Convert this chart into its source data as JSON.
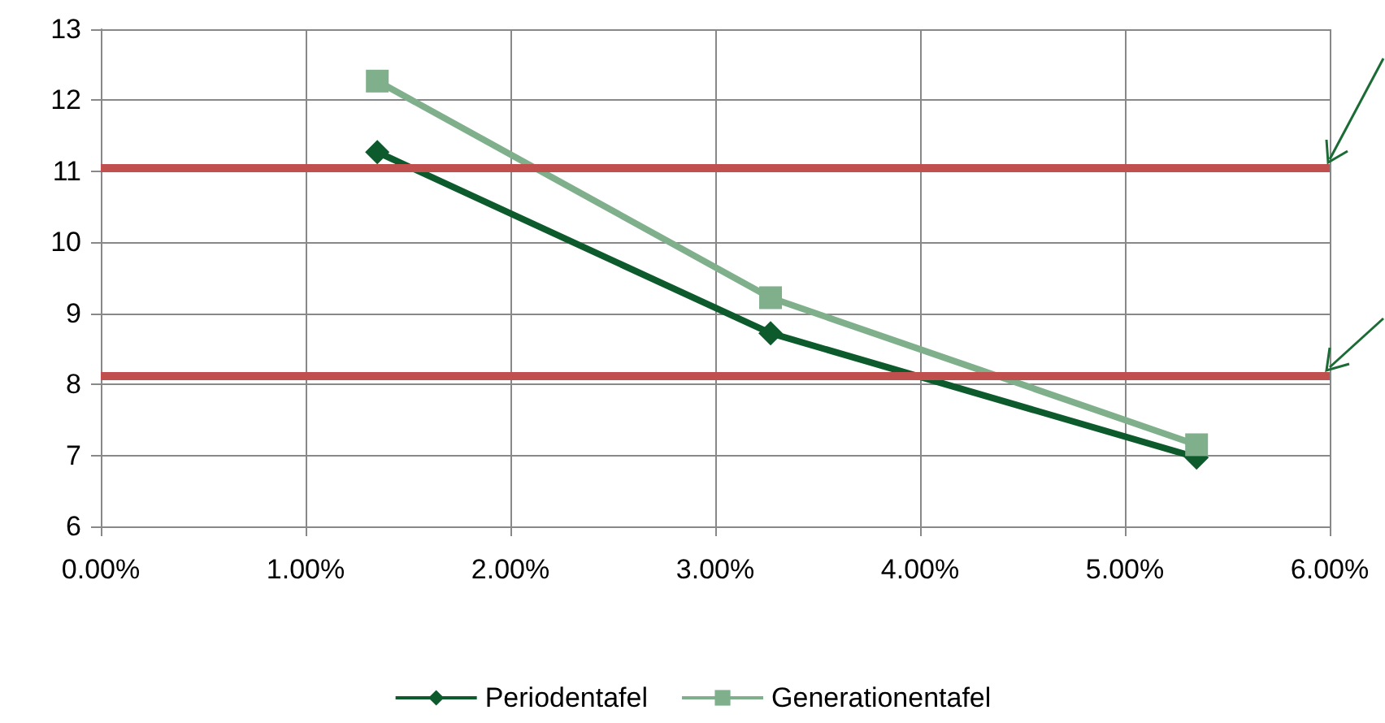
{
  "chart_data": {
    "type": "line",
    "xlim": [
      0,
      6
    ],
    "xticks": [
      {
        "value": 0,
        "label": "0.00%"
      },
      {
        "value": 1,
        "label": "1.00%"
      },
      {
        "value": 2,
        "label": "2.00%"
      },
      {
        "value": 3,
        "label": "3.00%"
      },
      {
        "value": 4,
        "label": "4.00%"
      },
      {
        "value": 5,
        "label": "5.00%"
      },
      {
        "value": 6,
        "label": "6.00%"
      }
    ],
    "ylim": [
      6,
      13
    ],
    "yticks": [
      6,
      7,
      8,
      9,
      10,
      11,
      12,
      13
    ],
    "grid": true,
    "legend": "bottom",
    "series": [
      {
        "name": "Periodentafel",
        "color": "#0d5a2c",
        "marker": "diamond",
        "x": [
          1.35,
          3.27,
          5.35
        ],
        "values": [
          11.27,
          8.72,
          6.97
        ]
      },
      {
        "name": "Generationentafel",
        "color": "#7faf8b",
        "marker": "square",
        "x": [
          1.35,
          3.27,
          5.35
        ],
        "values": [
          12.27,
          9.22,
          7.15
        ]
      }
    ],
    "ref_lines": [
      {
        "axis": "y",
        "value": 11.05,
        "color": "#c0504d"
      },
      {
        "axis": "y",
        "value": 8.12,
        "color": "#c0504d"
      }
    ]
  }
}
